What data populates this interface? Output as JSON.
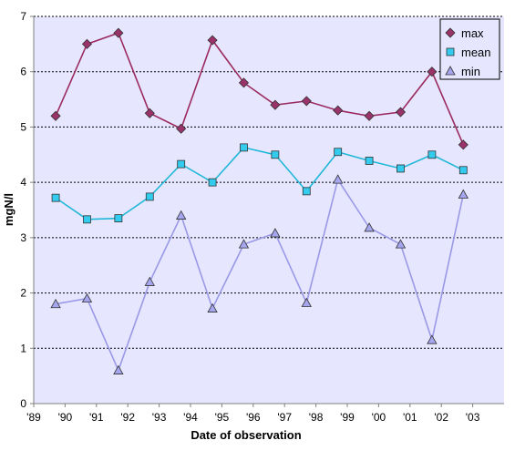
{
  "chart_data": {
    "type": "line",
    "title": "",
    "xlabel": "Date of observation",
    "ylabel": "mgN/l",
    "ylim": [
      0,
      7
    ],
    "y_ticks": [
      "0",
      "1",
      "2",
      "3",
      "4",
      "5",
      "6",
      "7"
    ],
    "x_range": [
      1989,
      2004
    ],
    "x_ticks": [
      "'89",
      "'90",
      "'91",
      "'92",
      "'93",
      "'94",
      "'95",
      "'96",
      "'97",
      "'98",
      "'99",
      "'00",
      "'01",
      "'02",
      "'03"
    ],
    "grid": "horizontal dotted",
    "legend_position": "top-right",
    "plot_background": "#e6e6ff",
    "x": [
      1989.7,
      1990.7,
      1991.7,
      1992.7,
      1993.7,
      1994.7,
      1995.7,
      1996.7,
      1997.7,
      1998.7,
      1999.7,
      2000.7,
      2001.7,
      2002.7
    ],
    "series": [
      {
        "name": "max",
        "line_color": "#9b2a5e",
        "marker": "diamond",
        "marker_color": "#99336a",
        "values": [
          5.2,
          6.5,
          6.7,
          5.25,
          4.97,
          6.57,
          5.8,
          5.4,
          5.47,
          5.3,
          5.2,
          5.27,
          6.0,
          4.68
        ]
      },
      {
        "name": "mean",
        "line_color": "#1fb8d8",
        "marker": "square",
        "marker_color": "#33ccee",
        "values": [
          3.72,
          3.33,
          3.35,
          3.74,
          4.33,
          4.0,
          4.63,
          4.5,
          3.84,
          4.55,
          4.39,
          4.25,
          4.5,
          4.22
        ]
      },
      {
        "name": "min",
        "line_color": "#9999e6",
        "marker": "triangle",
        "marker_color": "#a6a6ee",
        "values": [
          1.8,
          1.9,
          0.6,
          2.2,
          3.4,
          1.72,
          2.88,
          3.08,
          1.82,
          4.05,
          3.18,
          2.88,
          1.15,
          3.78
        ]
      }
    ]
  }
}
